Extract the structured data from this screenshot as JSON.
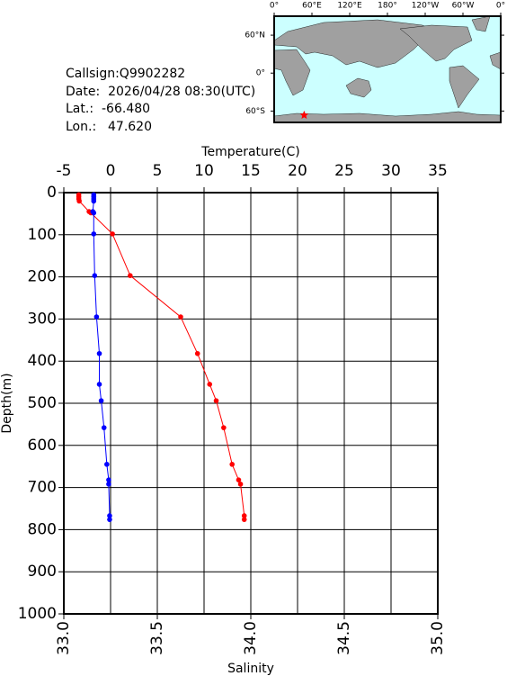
{
  "info": {
    "callsign": "Callsign:Q9902282",
    "date": "Date:  2026/04/28 08:30(UTC)",
    "lat_label": "Lat.:",
    "lat": {
      "value": -66.48,
      "label": "-66.480"
    },
    "lon_label": "Lon.:",
    "lon": {
      "value": 47.62,
      "label": "47.620"
    }
  },
  "map": {
    "lonlim": [
      0,
      360
    ],
    "latlim": [
      -78,
      90
    ],
    "star_color": "#ff0000",
    "lonticks": [
      {
        "value": 0,
        "label": "0°"
      },
      {
        "value": 60,
        "label": "60°E"
      },
      {
        "value": 120,
        "label": "120°E"
      },
      {
        "value": 180,
        "label": "180°"
      },
      {
        "value": 240,
        "label": "120°W"
      },
      {
        "value": 300,
        "label": "60°W"
      },
      {
        "value": 360,
        "label": "0°"
      }
    ],
    "latticks": [
      {
        "value": 60,
        "label": "60°N"
      },
      {
        "value": 0,
        "label": "0°"
      },
      {
        "value": -60,
        "label": "60°S"
      }
    ]
  },
  "chart_data": {
    "type": "line",
    "xlabel": "Temperature(C)",
    "x2label": "Salinity",
    "ylabel": "Depth(m)",
    "grid": true,
    "y_inverted": true,
    "xlim": [
      -5,
      35
    ],
    "xticks": [
      -5,
      0,
      5,
      10,
      15,
      20,
      25,
      30,
      35
    ],
    "x2lim": [
      33.0,
      35.0
    ],
    "x2ticks": [
      {
        "value": 33.0,
        "label": "33.0"
      },
      {
        "value": 33.5,
        "label": "33.5"
      },
      {
        "value": 34.0,
        "label": "34.0"
      },
      {
        "value": 34.5,
        "label": "34.5"
      },
      {
        "value": 35.0,
        "label": "35.0"
      }
    ],
    "ylim": [
      0,
      1000
    ],
    "yticks": [
      0,
      100,
      200,
      300,
      400,
      500,
      600,
      700,
      800,
      900,
      1000
    ],
    "y": [
      5,
      10,
      15,
      20,
      45,
      48,
      98,
      197,
      295,
      382,
      455,
      494,
      558,
      645,
      682,
      692,
      767,
      776
    ],
    "series": [
      {
        "color": "#ff0000",
        "axis": "x",
        "values": [
          -3.4,
          -3.4,
          -3.4,
          -3.35,
          -2.3,
          -2.1,
          0.2,
          2.1,
          7.5,
          9.3,
          10.6,
          11.3,
          12.1,
          13.0,
          13.7,
          13.9,
          14.3,
          14.3
        ]
      },
      {
        "color": "#0000ff",
        "axis": "x2",
        "values": [
          33.16,
          33.16,
          33.16,
          33.16,
          33.155,
          33.16,
          33.16,
          33.165,
          33.175,
          33.19,
          33.19,
          33.2,
          33.215,
          33.23,
          33.24,
          33.24,
          33.245,
          33.245
        ]
      }
    ]
  }
}
